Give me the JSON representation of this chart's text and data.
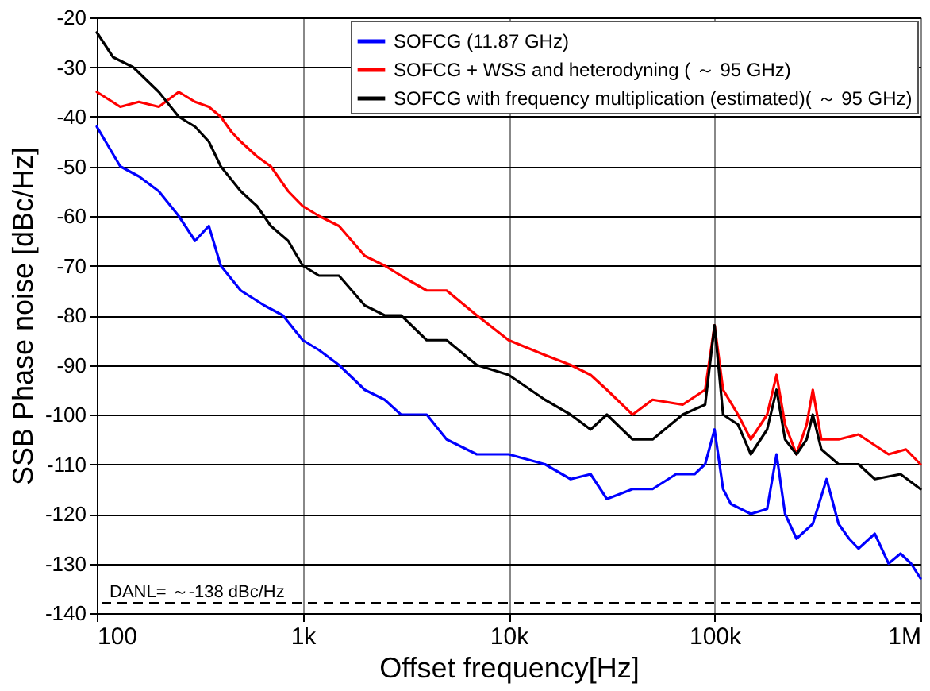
{
  "chart_data": {
    "type": "line",
    "xlabel": "Offset frequency[Hz]",
    "ylabel": "SSB Phase noise [dBc/Hz]",
    "log": "x",
    "xlim": [
      100,
      1000000
    ],
    "xticks": [
      {
        "value": 100,
        "label": "100"
      },
      {
        "value": 1000,
        "label": "1k"
      },
      {
        "value": 10000,
        "label": "10k"
      },
      {
        "value": 100000,
        "label": "100k"
      },
      {
        "value": 1000000,
        "label": "1M"
      }
    ],
    "ylim": [
      -140,
      -20
    ],
    "yticks": [
      -140,
      -130,
      -120,
      -110,
      -100,
      -90,
      -80,
      -70,
      -60,
      -50,
      -40,
      -30,
      -20
    ],
    "grid": true,
    "legend": "top right",
    "line_style": "solid",
    "marker": "none",
    "ref_lines": [
      {
        "axis": "y",
        "value": -138,
        "label": "DANL= ～-138 dBc/Hz",
        "line_style": "dashed",
        "color": "#000000"
      }
    ],
    "series": [
      {
        "name": "SOFCG (11.87 GHz)",
        "color": "#0000ff",
        "x": [
          100,
          130,
          160,
          200,
          250,
          300,
          350,
          400,
          500,
          650,
          800,
          1000,
          1200,
          1500,
          2000,
          2500,
          3000,
          4000,
          5000,
          7000,
          10000,
          15000,
          20000,
          25000,
          30000,
          40000,
          50000,
          65000,
          80000,
          90000,
          100000,
          110000,
          120000,
          150000,
          180000,
          200000,
          220000,
          250000,
          300000,
          350000,
          400000,
          450000,
          500000,
          600000,
          700000,
          800000,
          900000,
          1000000
        ],
        "values": [
          -42,
          -50,
          -52,
          -55,
          -60,
          -65,
          -62,
          -70,
          -75,
          -78,
          -80,
          -85,
          -87,
          -90,
          -95,
          -97,
          -100,
          -100,
          -105,
          -108,
          -108,
          -110,
          -113,
          -112,
          -117,
          -115,
          -115,
          -112,
          -112,
          -110,
          -103,
          -115,
          -118,
          -120,
          -119,
          -108,
          -120,
          -125,
          -122,
          -113,
          -122,
          -125,
          -127,
          -124,
          -130,
          -128,
          -130,
          -133
        ]
      },
      {
        "name": "SOFCG + WSS and heterodyning ( ～ 95 GHz)",
        "color": "#ff0000",
        "x": [
          100,
          130,
          160,
          200,
          250,
          300,
          350,
          400,
          450,
          500,
          600,
          700,
          850,
          1000,
          1200,
          1500,
          2000,
          2500,
          3000,
          4000,
          5000,
          7000,
          10000,
          15000,
          20000,
          25000,
          30000,
          40000,
          50000,
          70000,
          90000,
          100000,
          110000,
          130000,
          150000,
          180000,
          200000,
          220000,
          250000,
          280000,
          300000,
          330000,
          400000,
          500000,
          700000,
          850000,
          1000000
        ],
        "values": [
          -35,
          -38,
          -37,
          -38,
          -35,
          -37,
          -38,
          -40,
          -43,
          -45,
          -48,
          -50,
          -55,
          -58,
          -60,
          -62,
          -68,
          -70,
          -72,
          -75,
          -75,
          -80,
          -85,
          -88,
          -90,
          -92,
          -95,
          -100,
          -97,
          -98,
          -95,
          -82,
          -95,
          -100,
          -105,
          -100,
          -92,
          -102,
          -108,
          -102,
          -95,
          -105,
          -105,
          -104,
          -108,
          -107,
          -110
        ]
      },
      {
        "name": "SOFCG with frequency multiplication (estimated)( ～ 95 GHz)",
        "color": "#000000",
        "x": [
          100,
          120,
          150,
          200,
          250,
          300,
          350,
          400,
          500,
          600,
          700,
          850,
          1000,
          1200,
          1500,
          2000,
          2500,
          3000,
          4000,
          5000,
          7000,
          10000,
          15000,
          20000,
          25000,
          30000,
          40000,
          50000,
          70000,
          90000,
          100000,
          110000,
          130000,
          150000,
          180000,
          200000,
          220000,
          250000,
          280000,
          300000,
          330000,
          400000,
          500000,
          600000,
          800000,
          1000000
        ],
        "values": [
          -23,
          -28,
          -30,
          -35,
          -40,
          -42,
          -45,
          -50,
          -55,
          -58,
          -62,
          -65,
          -70,
          -72,
          -72,
          -78,
          -80,
          -80,
          -85,
          -85,
          -90,
          -92,
          -97,
          -100,
          -103,
          -100,
          -105,
          -105,
          -100,
          -98,
          -82,
          -100,
          -102,
          -108,
          -103,
          -95,
          -105,
          -108,
          -105,
          -100,
          -107,
          -110,
          -110,
          -113,
          -112,
          -115
        ]
      }
    ]
  }
}
